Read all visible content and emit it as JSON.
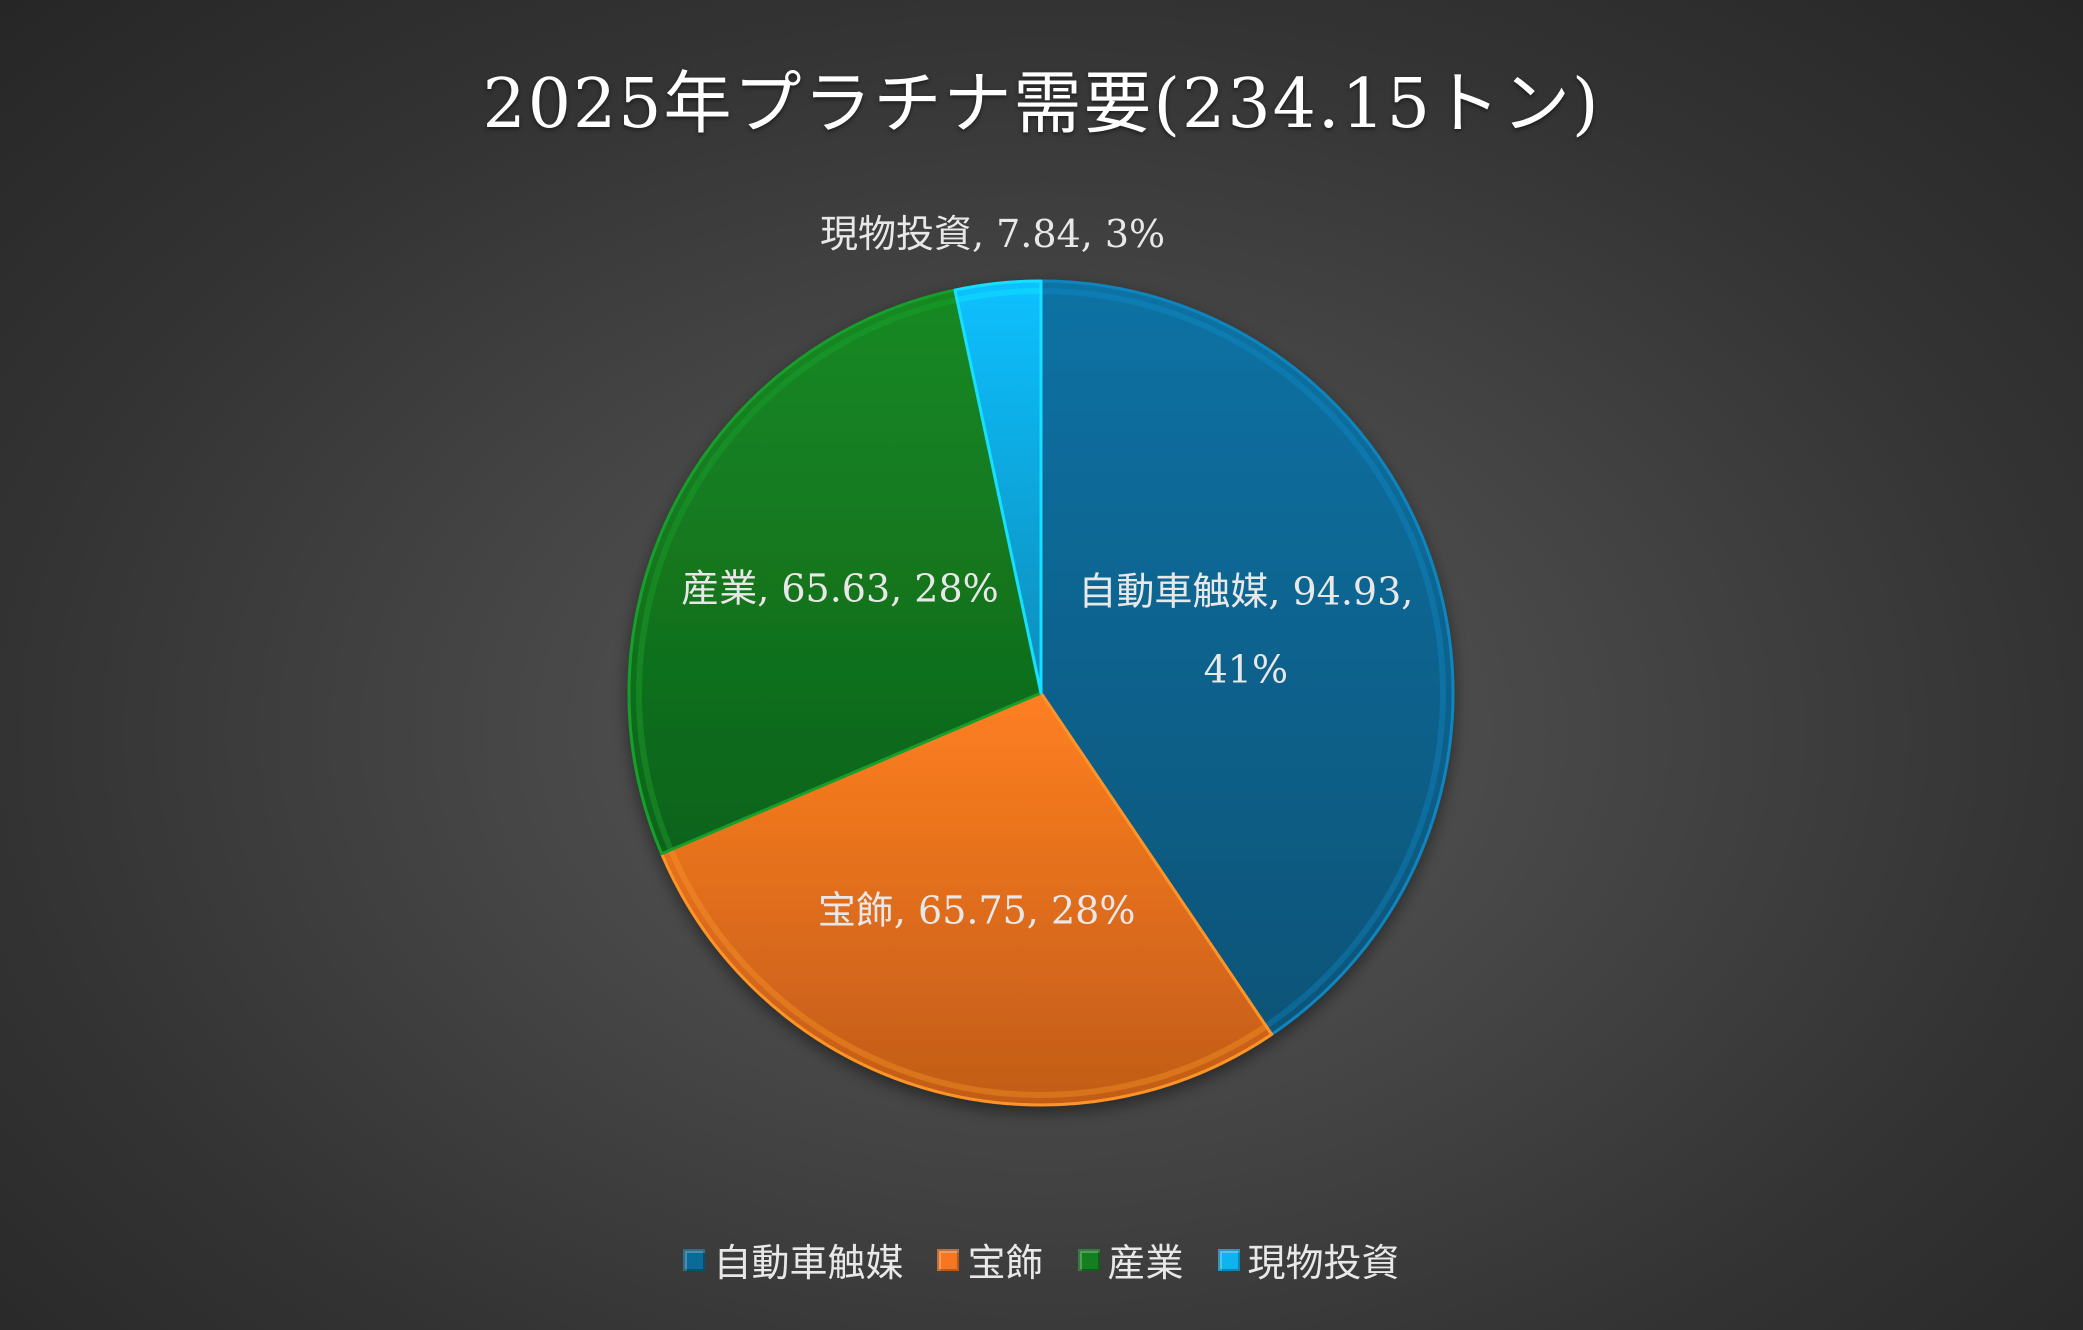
{
  "chart_data": {
    "type": "pie",
    "title": "2025年プラチナ需要(234.15トン)",
    "categories": [
      "自動車触媒",
      "宝飾",
      "産業",
      "現物投資"
    ],
    "values": [
      94.93,
      65.75,
      65.63,
      7.84
    ],
    "percent_labels": [
      "41%",
      "28%",
      "28%",
      "3%"
    ],
    "data_labels": [
      [
        "自動車触媒, 94.93,",
        "41%"
      ],
      [
        "宝飾, 65.75, 28%"
      ],
      [
        "産業, 65.63, 28%"
      ],
      [
        "現物投資, 7.84, 3%"
      ]
    ],
    "colors": [
      "#0a6a98",
      "#f7761f",
      "#137f21",
      "#0fb3ef"
    ],
    "start_angle": "12 o'clock",
    "direction": "clockwise",
    "legend_position": "bottom"
  }
}
